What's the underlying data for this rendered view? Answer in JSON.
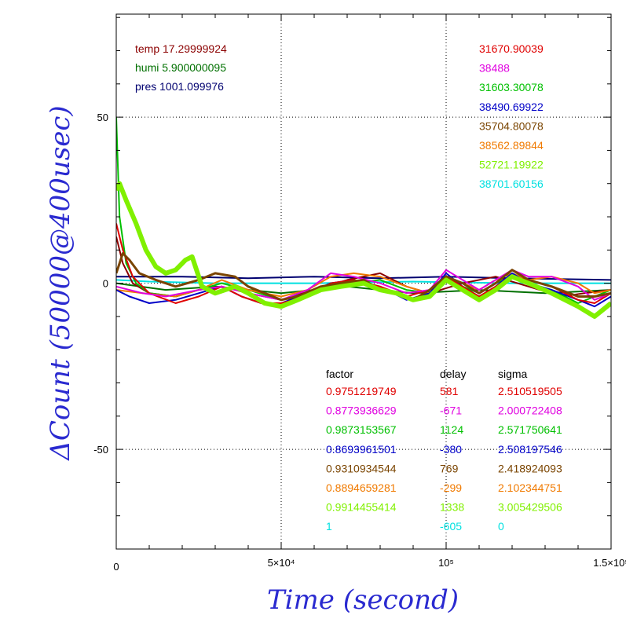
{
  "chart_data": {
    "type": "line",
    "xlabel": "Time (second)",
    "ylabel": "ΔCount (50000@400usec)",
    "xlim": [
      0,
      150000
    ],
    "ylim": [
      -80,
      81
    ],
    "x_ticks": [
      {
        "value": 0,
        "label": "0"
      },
      {
        "value": 50000,
        "label": "5×10⁴"
      },
      {
        "value": 100000,
        "label": "10⁵"
      },
      {
        "value": 150000,
        "label": "1.5×10⁵"
      }
    ],
    "y_ticks": [
      {
        "value": 50,
        "label": "50"
      },
      {
        "value": 0,
        "label": "0"
      },
      {
        "value": -50,
        "label": "-50"
      }
    ],
    "grid": true,
    "environment": [
      {
        "label": "temp 17.29999924",
        "color": "#8b0000"
      },
      {
        "label": "humi 5.900000095",
        "color": "#007000"
      },
      {
        "label": "pres 1001.099976",
        "color": "#000070"
      }
    ],
    "legend_values": [
      {
        "text": "31670.90039",
        "color": "#e00000"
      },
      {
        "text": "38488",
        "color": "#e000e0"
      },
      {
        "text": "31603.30078",
        "color": "#00c000"
      },
      {
        "text": "38490.69922",
        "color": "#0000c8"
      },
      {
        "text": "35704.80078",
        "color": "#7a4400"
      },
      {
        "text": "38562.89844",
        "color": "#f07a00"
      },
      {
        "text": "52721.19922",
        "color": "#80f000"
      },
      {
        "text": "38701.60156",
        "color": "#00e0e0"
      }
    ],
    "table": {
      "headers": [
        "factor",
        "delay",
        "sigma"
      ],
      "rows": [
        {
          "color": "#e00000",
          "factor": "0.9751219749",
          "delay": "581",
          "sigma": "2.510519505"
        },
        {
          "color": "#e000e0",
          "factor": "0.8773936629",
          "delay": "-671",
          "sigma": "2.000722408"
        },
        {
          "color": "#00c000",
          "factor": "0.9873153567",
          "delay": "1124",
          "sigma": "2.571750641"
        },
        {
          "color": "#0000c8",
          "factor": "0.8693961501",
          "delay": "-380",
          "sigma": "2.508197546"
        },
        {
          "color": "#7a4400",
          "factor": "0.9310934544",
          "delay": "769",
          "sigma": "2.418924093"
        },
        {
          "color": "#f07a00",
          "factor": "0.8894659281",
          "delay": "-299",
          "sigma": "2.102344751"
        },
        {
          "color": "#80f000",
          "factor": "0.9914455414",
          "delay": "1338",
          "sigma": "3.005429506"
        },
        {
          "color": "#00e0e0",
          "factor": "1",
          "delay": "-605",
          "sigma": "0"
        }
      ]
    },
    "series": [
      {
        "color": "#00e0e0",
        "values": [
          [
            0,
            1
          ],
          [
            10000,
            0.5
          ],
          [
            30000,
            0
          ],
          [
            60000,
            0
          ],
          [
            90000,
            0.5
          ],
          [
            120000,
            0
          ],
          [
            150000,
            0
          ]
        ]
      },
      {
        "color": "#000070",
        "values": [
          [
            0,
            2
          ],
          [
            20000,
            2
          ],
          [
            40000,
            1.5
          ],
          [
            60000,
            2
          ],
          [
            80000,
            1.5
          ],
          [
            100000,
            2
          ],
          [
            120000,
            1.5
          ],
          [
            150000,
            1
          ]
        ]
      },
      {
        "color": "#007000",
        "values": [
          [
            0,
            0
          ],
          [
            15000,
            -2
          ],
          [
            30000,
            -1
          ],
          [
            50000,
            -3
          ],
          [
            70000,
            -1
          ],
          [
            90000,
            -3
          ],
          [
            110000,
            -2
          ],
          [
            130000,
            -3
          ],
          [
            150000,
            -2
          ]
        ]
      },
      {
        "color": "#8b0000",
        "values": [
          [
            0,
            14
          ],
          [
            2000,
            6
          ],
          [
            5000,
            0
          ],
          [
            10000,
            -3
          ],
          [
            18000,
            -4
          ],
          [
            25000,
            -2
          ],
          [
            32000,
            -1
          ],
          [
            40000,
            -3
          ],
          [
            50000,
            -5
          ],
          [
            60000,
            -2
          ],
          [
            70000,
            1
          ],
          [
            80000,
            3
          ],
          [
            88000,
            -1
          ],
          [
            95000,
            -3
          ],
          [
            105000,
            0
          ],
          [
            115000,
            2
          ],
          [
            125000,
            -1
          ],
          [
            135000,
            -4
          ],
          [
            142000,
            -3
          ],
          [
            150000,
            -2
          ]
        ]
      },
      {
        "color": "#00c000",
        "values": [
          [
            0,
            50
          ],
          [
            1000,
            20
          ],
          [
            3000,
            6
          ],
          [
            6000,
            0
          ],
          [
            10000,
            -3
          ],
          [
            18000,
            -4
          ],
          [
            25000,
            -2
          ],
          [
            32000,
            0
          ],
          [
            40000,
            -2
          ],
          [
            50000,
            -5
          ],
          [
            58000,
            -3
          ],
          [
            65000,
            -1
          ],
          [
            72000,
            0
          ],
          [
            80000,
            1
          ],
          [
            88000,
            -2
          ],
          [
            95000,
            -3
          ],
          [
            100000,
            1
          ],
          [
            105000,
            -1
          ],
          [
            110000,
            -3
          ],
          [
            115000,
            0
          ],
          [
            120000,
            2
          ],
          [
            125000,
            0
          ],
          [
            132000,
            -2
          ],
          [
            140000,
            -6
          ],
          [
            145000,
            -4
          ],
          [
            150000,
            -2
          ]
        ]
      },
      {
        "color": "#f07a00",
        "values": [
          [
            0,
            -2
          ],
          [
            8000,
            -3
          ],
          [
            18000,
            -4
          ],
          [
            25000,
            -2
          ],
          [
            32000,
            1
          ],
          [
            40000,
            -2
          ],
          [
            50000,
            -4
          ],
          [
            58000,
            -2
          ],
          [
            65000,
            2
          ],
          [
            72000,
            3
          ],
          [
            80000,
            2
          ],
          [
            88000,
            -1
          ],
          [
            95000,
            -3
          ],
          [
            100000,
            2
          ],
          [
            105000,
            0
          ],
          [
            110000,
            -2
          ],
          [
            115000,
            1
          ],
          [
            120000,
            3
          ],
          [
            125000,
            1
          ],
          [
            132000,
            2
          ],
          [
            140000,
            0
          ],
          [
            145000,
            -3
          ],
          [
            150000,
            -2
          ]
        ]
      },
      {
        "color": "#0000c8",
        "values": [
          [
            0,
            -2
          ],
          [
            4000,
            -4
          ],
          [
            10000,
            -6
          ],
          [
            18000,
            -5
          ],
          [
            25000,
            -3
          ],
          [
            32000,
            -1
          ],
          [
            38000,
            -4
          ],
          [
            44000,
            -6
          ],
          [
            50000,
            -6
          ],
          [
            58000,
            -3
          ],
          [
            65000,
            0
          ],
          [
            72000,
            1
          ],
          [
            80000,
            -1
          ],
          [
            88000,
            -5
          ],
          [
            95000,
            -3
          ],
          [
            100000,
            3
          ],
          [
            105000,
            -1
          ],
          [
            110000,
            -4
          ],
          [
            115000,
            -1
          ],
          [
            120000,
            3
          ],
          [
            125000,
            0
          ],
          [
            132000,
            -2
          ],
          [
            140000,
            -5
          ],
          [
            145000,
            -7
          ],
          [
            150000,
            -4
          ]
        ]
      },
      {
        "color": "#e00000",
        "values": [
          [
            0,
            18
          ],
          [
            2000,
            10
          ],
          [
            5000,
            2
          ],
          [
            10000,
            -3
          ],
          [
            18000,
            -6
          ],
          [
            25000,
            -4
          ],
          [
            32000,
            -1
          ],
          [
            38000,
            -4
          ],
          [
            44000,
            -6
          ],
          [
            50000,
            -6
          ],
          [
            58000,
            -4
          ],
          [
            65000,
            0
          ],
          [
            72000,
            1
          ],
          [
            80000,
            -1
          ],
          [
            88000,
            -4
          ],
          [
            95000,
            -2
          ],
          [
            100000,
            2
          ],
          [
            105000,
            -1
          ],
          [
            110000,
            -4
          ],
          [
            115000,
            -1
          ],
          [
            120000,
            2
          ],
          [
            125000,
            1
          ],
          [
            132000,
            -1
          ],
          [
            140000,
            -5
          ],
          [
            145000,
            -6
          ],
          [
            150000,
            -3
          ]
        ]
      },
      {
        "color": "#e000e0",
        "values": [
          [
            0,
            -1
          ],
          [
            8000,
            -3
          ],
          [
            15000,
            -4
          ],
          [
            25000,
            -2
          ],
          [
            32000,
            -1
          ],
          [
            40000,
            -3
          ],
          [
            50000,
            -5
          ],
          [
            58000,
            -2
          ],
          [
            65000,
            3
          ],
          [
            72000,
            2
          ],
          [
            80000,
            0
          ],
          [
            88000,
            -3
          ],
          [
            95000,
            -2
          ],
          [
            100000,
            4
          ],
          [
            105000,
            1
          ],
          [
            110000,
            -2
          ],
          [
            115000,
            1
          ],
          [
            120000,
            4
          ],
          [
            125000,
            2
          ],
          [
            132000,
            2
          ],
          [
            140000,
            -1
          ],
          [
            145000,
            -5
          ],
          [
            150000,
            -3
          ]
        ]
      },
      {
        "color": "#7a4400",
        "values": [
          [
            0,
            3
          ],
          [
            2000,
            9
          ],
          [
            4000,
            7
          ],
          [
            7000,
            3
          ],
          [
            12000,
            1
          ],
          [
            18000,
            -1
          ],
          [
            25000,
            1
          ],
          [
            30000,
            3
          ],
          [
            36000,
            2
          ],
          [
            40000,
            -1
          ],
          [
            45000,
            -3
          ],
          [
            50000,
            -5
          ],
          [
            55000,
            -4
          ],
          [
            62000,
            -1
          ],
          [
            68000,
            0
          ],
          [
            75000,
            1
          ],
          [
            80000,
            -2
          ],
          [
            85000,
            -3
          ],
          [
            90000,
            -5
          ],
          [
            95000,
            -2
          ],
          [
            100000,
            2
          ],
          [
            105000,
            0
          ],
          [
            110000,
            -3
          ],
          [
            115000,
            0
          ],
          [
            120000,
            4
          ],
          [
            125000,
            1
          ],
          [
            132000,
            -1
          ],
          [
            140000,
            -4
          ],
          [
            145000,
            -4
          ],
          [
            150000,
            -3
          ]
        ]
      },
      {
        "color": "#80f000",
        "values": [
          [
            0,
            28
          ],
          [
            1000,
            30
          ],
          [
            3000,
            25
          ],
          [
            6000,
            18
          ],
          [
            9000,
            10
          ],
          [
            12000,
            5
          ],
          [
            15000,
            3
          ],
          [
            18000,
            4
          ],
          [
            21000,
            7
          ],
          [
            23000,
            8
          ],
          [
            26000,
            -1
          ],
          [
            30000,
            -3
          ],
          [
            36000,
            -1
          ],
          [
            40000,
            -3
          ],
          [
            45000,
            -6
          ],
          [
            50000,
            -7
          ],
          [
            55000,
            -5
          ],
          [
            62000,
            -2
          ],
          [
            68000,
            -1
          ],
          [
            75000,
            0
          ],
          [
            80000,
            -2
          ],
          [
            85000,
            -3
          ],
          [
            90000,
            -5
          ],
          [
            95000,
            -4
          ],
          [
            100000,
            1
          ],
          [
            105000,
            -2
          ],
          [
            110000,
            -5
          ],
          [
            115000,
            -2
          ],
          [
            120000,
            2
          ],
          [
            125000,
            0
          ],
          [
            132000,
            -3
          ],
          [
            140000,
            -7
          ],
          [
            145000,
            -10
          ],
          [
            150000,
            -6
          ]
        ]
      }
    ]
  }
}
